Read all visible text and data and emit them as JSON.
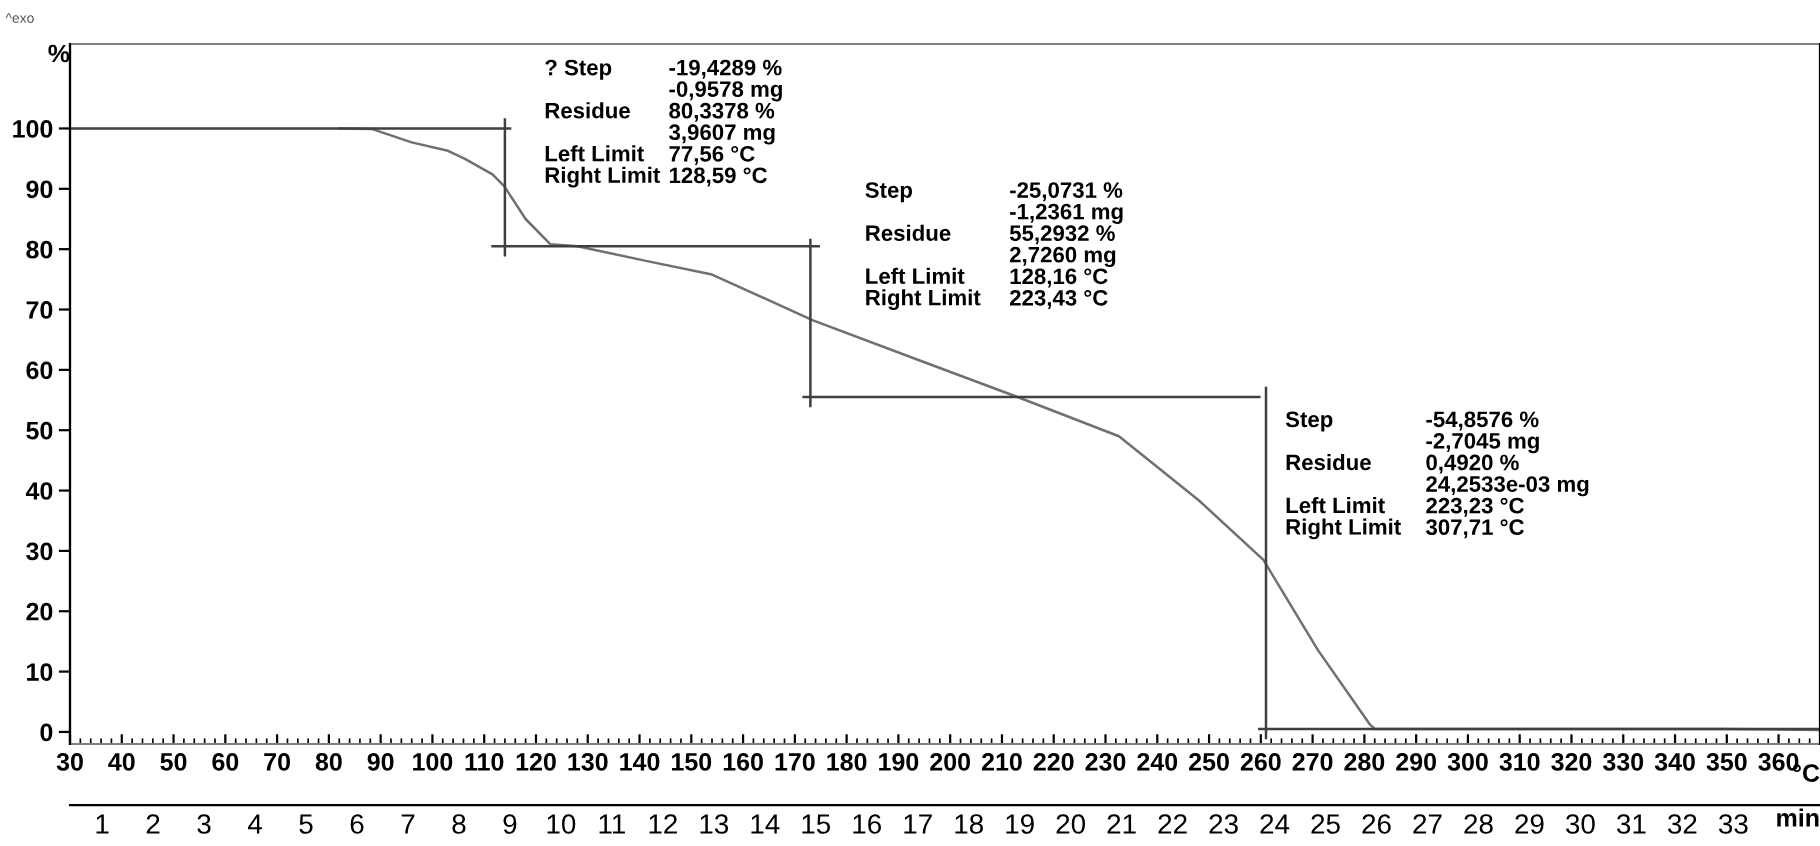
{
  "chart_data": {
    "type": "line",
    "ylabel": "%",
    "xlabel": "°C",
    "x2label": "min",
    "xlim": [
      30,
      368
    ],
    "ylim": [
      -2,
      114
    ],
    "xticks": [
      30,
      40,
      50,
      60,
      70,
      80,
      90,
      100,
      110,
      120,
      130,
      140,
      150,
      160,
      170,
      180,
      190,
      200,
      210,
      220,
      230,
      240,
      250,
      260,
      270,
      280,
      290,
      300,
      310,
      320,
      330,
      340,
      350,
      360
    ],
    "yticks": [
      0,
      10,
      20,
      30,
      40,
      50,
      60,
      70,
      80,
      90,
      100
    ],
    "x2lim": [
      0.37,
      34.7
    ],
    "x2ticks": [
      1,
      2,
      3,
      4,
      5,
      6,
      7,
      8,
      9,
      10,
      11,
      12,
      13,
      14,
      15,
      16,
      17,
      18,
      19,
      20,
      21,
      22,
      23,
      24,
      25,
      26,
      27,
      28,
      29,
      30,
      31,
      32,
      33
    ],
    "grid": false,
    "legend": false,
    "series": [
      {
        "color": "#707070",
        "x": [
          82,
          88.4,
          96,
          103,
          106.2,
          111.6,
          113.9,
          118,
          122.8,
          128,
          141,
          154,
          173.5,
          194,
          213,
          232.6,
          248,
          260.5,
          271,
          281,
          282,
          300,
          330,
          350,
          360,
          368
        ],
        "values": [
          100,
          99.9,
          97.7,
          96.3,
          95,
          92.4,
          90.4,
          85,
          80.8,
          80.5,
          78.1,
          75.8,
          68.2,
          61.6,
          55.5,
          49,
          38.4,
          28.5,
          13.6,
          1.3,
          0.5,
          0.5,
          0.5,
          0.5,
          0.4,
          0.3
        ]
      },
      {
        "color": "#404040",
        "x": [
          30,
          115,
          null,
          114,
          114,
          null,
          111.6,
          174.6,
          null,
          173,
          173,
          null,
          171.7,
          259.7,
          null,
          261,
          261,
          null,
          259.7,
          368
        ],
        "values": [
          100,
          100,
          null,
          101.5,
          79,
          null,
          80.5,
          80.5,
          null,
          81.5,
          54,
          null,
          55.5,
          55.5,
          null,
          57,
          -1,
          null,
          0.5,
          0.5
        ]
      }
    ],
    "annotations": [
      "^exo",
      "? Step\n\nResidue\n\nLeft Limit\nRight Limit",
      "-19,4289 %\n-0,9578 mg\n80,3378 %\n3,9607 mg\n77,56 °C\n128,59 °C",
      "Step\n\nResidue\n\nLeft Limit\nRight Limit",
      "-25,0731 %\n-1,2361 mg\n55,2932 %\n2,7260 mg\n128,16 °C\n223,43 °C",
      "Step\n\nResidue\n\nLeft Limit\nRight Limit",
      "-54,8576 %\n-2,7045 mg\n0,4920 %\n24,2533e-03 mg\n223,23 °C\n307,71 °C"
    ]
  }
}
